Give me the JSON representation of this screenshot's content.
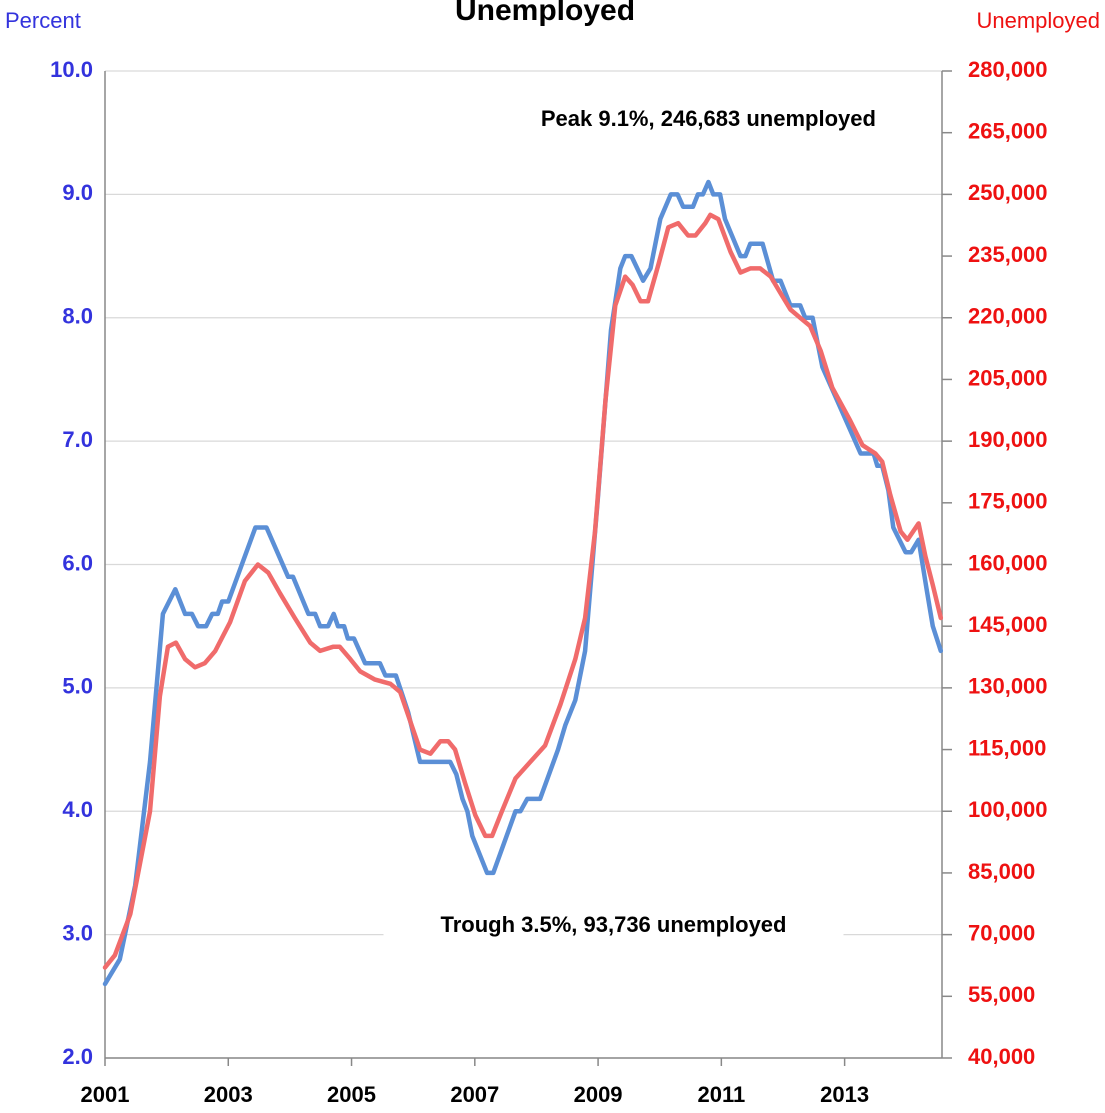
{
  "chart_data": {
    "type": "line",
    "title": "Unemployed",
    "y_label": "Percent",
    "y2_label": "Unemployed",
    "annotations": [
      {
        "text": "Peak 9.1%, 246,683 unemployed",
        "x": 2010.79,
        "y": 9.6
      },
      {
        "text": "Trough 3.5%,  93,736 unemployed",
        "x": 2009.25,
        "y": 3.07
      }
    ],
    "xlim": [
      2001,
      2014.58
    ],
    "xticks": [
      2001,
      2003,
      2005,
      2007,
      2009,
      2011,
      2013
    ],
    "ylim": [
      2,
      10
    ],
    "yticks": [
      {
        "value": 2,
        "label": "2.0"
      },
      {
        "value": 3,
        "label": "3.0"
      },
      {
        "value": 4,
        "label": "4.0"
      },
      {
        "value": 5,
        "label": "5.0"
      },
      {
        "value": 6,
        "label": "6.0"
      },
      {
        "value": 7,
        "label": "7.0"
      },
      {
        "value": 8,
        "label": "8.0"
      },
      {
        "value": 9,
        "label": "9.0"
      },
      {
        "value": 10,
        "label": "10.0"
      }
    ],
    "y2lim": [
      40000,
      280000
    ],
    "y2ticks": [
      {
        "value": 40000,
        "label": "40,000"
      },
      {
        "value": 55000,
        "label": "55,000"
      },
      {
        "value": 70000,
        "label": "70,000"
      },
      {
        "value": 85000,
        "label": "85,000"
      },
      {
        "value": 100000,
        "label": "100,000"
      },
      {
        "value": 115000,
        "label": "115,000"
      },
      {
        "value": 130000,
        "label": "130,000"
      },
      {
        "value": 145000,
        "label": "145,000"
      },
      {
        "value": 160000,
        "label": "160,000"
      },
      {
        "value": 175000,
        "label": "175,000"
      },
      {
        "value": 190000,
        "label": "190,000"
      },
      {
        "value": 205000,
        "label": "205,000"
      },
      {
        "value": 220000,
        "label": "220,000"
      },
      {
        "value": 235000,
        "label": "235,000"
      },
      {
        "value": 250000,
        "label": "250,000"
      },
      {
        "value": 265000,
        "label": "265,000"
      },
      {
        "value": 280000,
        "label": "280,000"
      }
    ],
    "grid": true,
    "series": [
      {
        "color": "#5b8fd6",
        "axis": "y",
        "x": [
          2001.0,
          2001.24,
          2001.49,
          2001.73,
          2001.94,
          2002.14,
          2002.3,
          2002.41,
          2002.51,
          2002.64,
          2002.74,
          2002.83,
          2002.9,
          2003.0,
          2003.44,
          2003.62,
          2003.97,
          2004.05,
          2004.3,
          2004.41,
          2004.49,
          2004.62,
          2004.71,
          2004.78,
          2004.88,
          2004.94,
          2005.04,
          2005.22,
          2005.46,
          2005.55,
          2005.72,
          2005.92,
          2006.11,
          2006.6,
          2006.7,
          2006.8,
          2006.88,
          2006.96,
          2007.2,
          2007.3,
          2007.66,
          2007.74,
          2007.85,
          2008.06,
          2008.35,
          2008.47,
          2008.63,
          2008.79,
          2008.99,
          2009.21,
          2009.36,
          2009.44,
          2009.54,
          2009.73,
          2009.85,
          2010.01,
          2010.18,
          2010.29,
          2010.38,
          2010.54,
          2010.62,
          2010.7,
          2010.79,
          2010.87,
          2010.98,
          2011.06,
          2011.31,
          2011.39,
          2011.47,
          2011.67,
          2011.84,
          2011.96,
          2012.12,
          2012.28,
          2012.36,
          2012.48,
          2012.64,
          2013.26,
          2013.47,
          2013.53,
          2013.61,
          2013.71,
          2013.79,
          2013.99,
          2014.08,
          2014.2,
          2014.33,
          2014.43,
          2014.56
        ],
        "values": [
          2.6,
          2.8,
          3.4,
          4.4,
          5.6,
          5.8,
          5.6,
          5.6,
          5.5,
          5.5,
          5.6,
          5.6,
          5.7,
          5.7,
          6.3,
          6.3,
          5.9,
          5.9,
          5.6,
          5.6,
          5.5,
          5.5,
          5.6,
          5.5,
          5.5,
          5.4,
          5.4,
          5.2,
          5.2,
          5.1,
          5.1,
          4.8,
          4.4,
          4.4,
          4.3,
          4.1,
          4.0,
          3.8,
          3.5,
          3.5,
          4.0,
          4.0,
          4.1,
          4.1,
          4.5,
          4.7,
          4.9,
          5.3,
          6.5,
          7.9,
          8.4,
          8.5,
          8.5,
          8.3,
          8.4,
          8.8,
          9.0,
          9.0,
          8.9,
          8.9,
          9.0,
          9.0,
          9.1,
          9.0,
          9.0,
          8.8,
          8.5,
          8.5,
          8.6,
          8.6,
          8.3,
          8.3,
          8.1,
          8.1,
          8.0,
          8.0,
          7.6,
          6.9,
          6.9,
          6.8,
          6.8,
          6.6,
          6.3,
          6.1,
          6.1,
          6.2,
          5.8,
          5.5,
          5.3
        ]
      },
      {
        "color": "#f06b6b",
        "axis": "y2",
        "x": [
          2001.0,
          2001.16,
          2001.41,
          2001.73,
          2001.89,
          2002.02,
          2002.15,
          2002.3,
          2002.46,
          2002.62,
          2002.79,
          2003.03,
          2003.27,
          2003.48,
          2003.65,
          2003.84,
          2004.08,
          2004.33,
          2004.49,
          2004.7,
          2004.81,
          2004.98,
          2005.14,
          2005.38,
          2005.63,
          2005.79,
          2005.95,
          2006.11,
          2006.28,
          2006.44,
          2006.57,
          2006.68,
          2006.84,
          2007.01,
          2007.17,
          2007.28,
          2007.44,
          2007.66,
          2007.9,
          2008.14,
          2008.39,
          2008.63,
          2008.79,
          2008.95,
          2009.12,
          2009.28,
          2009.44,
          2009.56,
          2009.69,
          2009.81,
          2009.98,
          2010.14,
          2010.3,
          2010.46,
          2010.58,
          2010.74,
          2010.82,
          2010.95,
          2011.15,
          2011.31,
          2011.47,
          2011.63,
          2011.8,
          2011.96,
          2012.12,
          2012.28,
          2012.44,
          2012.61,
          2012.8,
          2013.09,
          2013.29,
          2013.5,
          2013.61,
          2013.74,
          2013.91,
          2014.02,
          2014.2,
          2014.31,
          2014.43,
          2014.56
        ],
        "values": [
          62000,
          65000,
          75000,
          100000,
          128000,
          140000,
          141000,
          137000,
          135000,
          136000,
          139000,
          146000,
          156000,
          160000,
          158000,
          153000,
          147000,
          141000,
          139000,
          140000,
          140000,
          137000,
          134000,
          132000,
          131000,
          129000,
          122000,
          115000,
          114000,
          117000,
          117000,
          115000,
          107000,
          99000,
          94000,
          94000,
          100000,
          108000,
          112000,
          116000,
          126000,
          137000,
          147000,
          168000,
          200000,
          223000,
          230000,
          228000,
          224000,
          224000,
          233000,
          242000,
          243000,
          240000,
          240000,
          243000,
          245000,
          244000,
          236000,
          231000,
          232000,
          232000,
          230000,
          226000,
          222000,
          220000,
          218000,
          212000,
          203000,
          195000,
          189000,
          187000,
          185000,
          177000,
          168000,
          166000,
          170000,
          162000,
          155000,
          147000
        ]
      }
    ]
  }
}
